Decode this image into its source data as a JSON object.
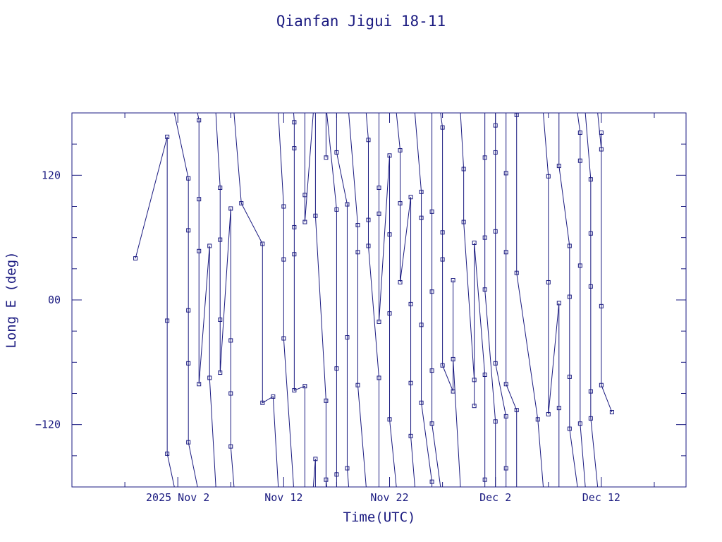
{
  "chart_data": {
    "type": "line",
    "title": "Qianfan Jigui 18-11",
    "xlabel": "Time(UTC)",
    "ylabel": "Long E (deg)",
    "line_color": "#1a1a80",
    "xlim": [
      "2025-10-23",
      "2025-12-20"
    ],
    "ylim": [
      -180,
      180
    ],
    "x_ticks": [
      {
        "label": "2025 Nov  2",
        "date": "2025-11-02"
      },
      {
        "label": "Nov 12",
        "date": "2025-11-12"
      },
      {
        "label": "Nov 22",
        "date": "2025-11-22"
      },
      {
        "label": "Dec  2",
        "date": "2025-12-02"
      },
      {
        "label": "Dec 12",
        "date": "2025-12-12"
      }
    ],
    "y_ticks": [
      {
        "label": "120",
        "value": 120
      },
      {
        "label": "00",
        "value": 0
      },
      {
        "label": "−120",
        "value": -120
      }
    ],
    "grid": false,
    "legend": "none",
    "series": [
      {
        "points": [
          [
            "2025-10-29",
            40
          ],
          [
            "2025-11-01",
            157
          ],
          [
            "2025-11-01",
            -20
          ],
          [
            "2025-11-01",
            -148
          ],
          [
            "2025-11-03",
            117
          ],
          [
            "2025-11-03",
            67
          ],
          [
            "2025-11-03",
            -10
          ],
          [
            "2025-11-03",
            -61
          ],
          [
            "2025-11-03",
            -137
          ],
          [
            "2025-11-04",
            173
          ],
          [
            "2025-11-04",
            97
          ],
          [
            "2025-11-04",
            47
          ],
          [
            "2025-11-04",
            -81
          ],
          [
            "2025-11-05",
            52
          ],
          [
            "2025-11-05",
            -75
          ],
          [
            "2025-11-06",
            108
          ],
          [
            "2025-11-06",
            58
          ],
          [
            "2025-11-06",
            -19
          ],
          [
            "2025-11-06",
            -70
          ],
          [
            "2025-11-07",
            88
          ],
          [
            "2025-11-07",
            -39
          ],
          [
            "2025-11-07",
            -90
          ],
          [
            "2025-11-07",
            -141
          ],
          [
            "2025-11-08",
            93
          ],
          [
            "2025-11-10",
            54
          ],
          [
            "2025-11-10",
            -99
          ],
          [
            "2025-11-11",
            -93
          ],
          [
            "2025-11-12",
            90
          ],
          [
            "2025-11-12",
            39
          ],
          [
            "2025-11-12",
            -37
          ],
          [
            "2025-11-13",
            171
          ],
          [
            "2025-11-13",
            146
          ],
          [
            "2025-11-13",
            70
          ],
          [
            "2025-11-13",
            44
          ],
          [
            "2025-11-13",
            -87
          ],
          [
            "2025-11-14",
            -83
          ],
          [
            "2025-11-14",
            101
          ],
          [
            "2025-11-14",
            75
          ],
          [
            "2025-11-15",
            -153
          ],
          [
            "2025-11-15",
            81
          ],
          [
            "2025-11-16",
            -97
          ],
          [
            "2025-11-16",
            137
          ],
          [
            "2025-11-16",
            -173
          ],
          [
            "2025-11-17",
            87
          ],
          [
            "2025-11-17",
            -66
          ],
          [
            "2025-11-17",
            -168
          ],
          [
            "2025-11-17",
            142
          ],
          [
            "2025-11-18",
            92
          ],
          [
            "2025-11-18",
            -36
          ],
          [
            "2025-11-18",
            -162
          ],
          [
            "2025-11-19",
            72
          ],
          [
            "2025-11-19",
            46
          ],
          [
            "2025-11-19",
            -82
          ],
          [
            "2025-11-20",
            154
          ],
          [
            "2025-11-20",
            77
          ],
          [
            "2025-11-20",
            52
          ],
          [
            "2025-11-21",
            -75
          ],
          [
            "2025-11-21",
            108
          ],
          [
            "2025-11-21",
            83
          ],
          [
            "2025-11-21",
            -21
          ],
          [
            "2025-11-22",
            139
          ],
          [
            "2025-11-22",
            63
          ],
          [
            "2025-11-22",
            -13
          ],
          [
            "2025-11-22",
            -115
          ],
          [
            "2025-11-23",
            144
          ],
          [
            "2025-11-23",
            93
          ],
          [
            "2025-11-23",
            17
          ],
          [
            "2025-11-24",
            99
          ],
          [
            "2025-11-24",
            -4
          ],
          [
            "2025-11-24",
            -80
          ],
          [
            "2025-11-24",
            -131
          ],
          [
            "2025-11-25",
            104
          ],
          [
            "2025-11-25",
            79
          ],
          [
            "2025-11-25",
            -24
          ],
          [
            "2025-11-25",
            -99
          ],
          [
            "2025-11-26",
            -175
          ],
          [
            "2025-11-26",
            85
          ],
          [
            "2025-11-26",
            8
          ],
          [
            "2025-11-26",
            -68
          ],
          [
            "2025-11-26",
            -119
          ],
          [
            "2025-11-27",
            166
          ],
          [
            "2025-11-27",
            65
          ],
          [
            "2025-11-27",
            39
          ],
          [
            "2025-11-27",
            -63
          ],
          [
            "2025-11-28",
            -88
          ],
          [
            "2025-11-28",
            19
          ],
          [
            "2025-11-28",
            -57
          ],
          [
            "2025-11-29",
            126
          ],
          [
            "2025-11-29",
            75
          ],
          [
            "2025-11-30",
            -77
          ],
          [
            "2025-11-30",
            -102
          ],
          [
            "2025-11-30",
            55
          ],
          [
            "2025-12-01",
            -72
          ],
          [
            "2025-12-01",
            -173
          ],
          [
            "2025-12-01",
            137
          ],
          [
            "2025-12-01",
            60
          ],
          [
            "2025-12-01",
            10
          ],
          [
            "2025-12-02",
            -117
          ],
          [
            "2025-12-02",
            168
          ],
          [
            "2025-12-02",
            142
          ],
          [
            "2025-12-02",
            66
          ],
          [
            "2025-12-02",
            -61
          ],
          [
            "2025-12-03",
            -112
          ],
          [
            "2025-12-03",
            -162
          ],
          [
            "2025-12-03",
            122
          ],
          [
            "2025-12-03",
            46
          ],
          [
            "2025-12-03",
            -81
          ],
          [
            "2025-12-04",
            -106
          ],
          [
            "2025-12-04",
            178
          ],
          [
            "2025-12-04",
            26
          ],
          [
            "2025-12-06",
            -115
          ],
          [
            "2025-12-07",
            119
          ],
          [
            "2025-12-07",
            17
          ],
          [
            "2025-12-07",
            -110
          ],
          [
            "2025-12-08",
            -3
          ],
          [
            "2025-12-08",
            -104
          ],
          [
            "2025-12-08",
            129
          ],
          [
            "2025-12-09",
            52
          ],
          [
            "2025-12-09",
            3
          ],
          [
            "2025-12-09",
            -74
          ],
          [
            "2025-12-09",
            -124
          ],
          [
            "2025-12-10",
            161
          ],
          [
            "2025-12-10",
            134
          ],
          [
            "2025-12-10",
            33
          ],
          [
            "2025-12-10",
            -119
          ],
          [
            "2025-12-11",
            116
          ],
          [
            "2025-12-11",
            64
          ],
          [
            "2025-12-11",
            13
          ],
          [
            "2025-12-11",
            -88
          ],
          [
            "2025-12-11",
            -114
          ],
          [
            "2025-12-12",
            145
          ],
          [
            "2025-12-12",
            161
          ],
          [
            "2025-12-12",
            -6
          ],
          [
            "2025-12-12",
            -82
          ],
          [
            "2025-12-13",
            -108
          ]
        ]
      }
    ]
  }
}
